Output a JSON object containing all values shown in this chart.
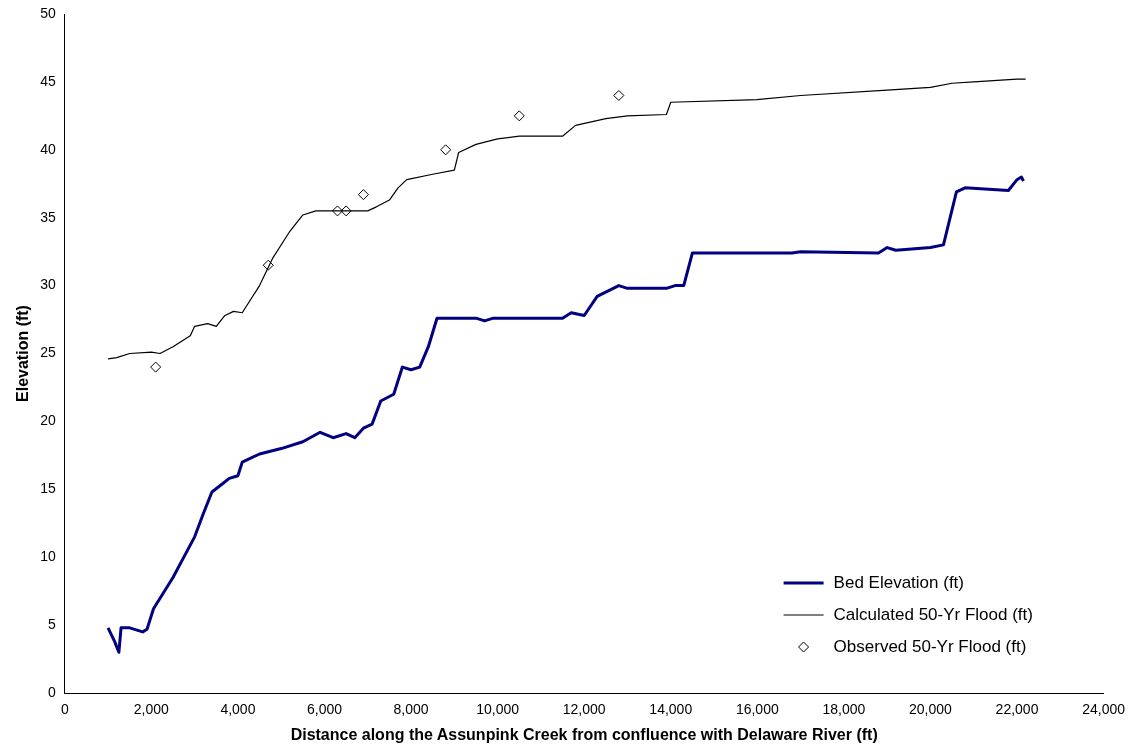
{
  "chart_data": {
    "type": "line",
    "xlabel": "Distance along the Assunpink Creek from confluence with Delaware River (ft)",
    "ylabel": "Elevation (ft)",
    "xlim": [
      0,
      24000
    ],
    "xticks": [
      0,
      {
        "value": 2000,
        "label": "2,000"
      },
      {
        "value": 4000,
        "label": "4,000"
      },
      {
        "value": 6000,
        "label": "6,000"
      },
      {
        "value": 8000,
        "label": "8,000"
      },
      {
        "value": 10000,
        "label": "10,000"
      },
      {
        "value": 12000,
        "label": "12,000"
      },
      {
        "value": 14000,
        "label": "14,000"
      },
      {
        "value": 16000,
        "label": "16,000"
      },
      {
        "value": 18000,
        "label": "18,000"
      },
      {
        "value": 20000,
        "label": "20,000"
      },
      {
        "value": 22000,
        "label": "22,000"
      },
      {
        "value": 24000,
        "label": "24,000"
      }
    ],
    "ylim": [
      0,
      50
    ],
    "yticks": [
      0,
      5,
      10,
      15,
      20,
      25,
      30,
      35,
      40,
      45,
      50
    ],
    "grid": false,
    "legend": "bottom right",
    "series": [
      {
        "name": "Bed Elevation (ft)",
        "color": "#000080",
        "x": [
          1000,
          1150,
          1250,
          1300,
          1500,
          1800,
          1900,
          2050,
          2500,
          3000,
          3200,
          3400,
          3600,
          3800,
          4000,
          4100,
          4500,
          5000,
          5500,
          5900,
          6200,
          6500,
          6700,
          6900,
          7100,
          7300,
          7600,
          7800,
          8000,
          8200,
          8400,
          8600,
          9500,
          9700,
          9900,
          11500,
          11700,
          12000,
          12300,
          12800,
          13000,
          13900,
          14100,
          14300,
          14500,
          16800,
          17000,
          18800,
          19000,
          19200,
          20000,
          20300,
          20600,
          20800,
          21800,
          22000,
          22100,
          22150
        ],
        "values": [
          4.8,
          3.8,
          3.0,
          4.8,
          4.8,
          4.5,
          4.7,
          6.2,
          8.5,
          11.5,
          13.2,
          14.8,
          15.3,
          15.8,
          16,
          17,
          17.6,
          18,
          18.5,
          19.2,
          18.8,
          19.1,
          18.8,
          19.5,
          19.8,
          21.5,
          22,
          24,
          23.8,
          24,
          25.5,
          27.6,
          27.6,
          27.4,
          27.6,
          27.6,
          28,
          27.8,
          29.2,
          30,
          29.8,
          29.8,
          30,
          30,
          32.4,
          32.4,
          32.5,
          32.4,
          32.8,
          32.6,
          32.8,
          33,
          36.9,
          37.2,
          37,
          37.8,
          38,
          37.7
        ]
      },
      {
        "name": "Calculated 50-Yr Flood (ft)",
        "color": "#000000",
        "x": [
          1000,
          1200,
          1500,
          2000,
          2200,
          2500,
          2900,
          3000,
          3300,
          3500,
          3700,
          3900,
          4100,
          4500,
          4800,
          5200,
          5500,
          5800,
          7000,
          7200,
          7500,
          7700,
          7900,
          8500,
          9000,
          9100,
          9500,
          10000,
          10500,
          11500,
          11800,
          12500,
          13000,
          13900,
          14000,
          16000,
          17000,
          19000,
          20000,
          20500,
          21000,
          22000,
          22200
        ],
        "values": [
          24.6,
          24.7,
          25,
          25.1,
          25,
          25.5,
          26.3,
          27,
          27.2,
          27,
          27.8,
          28.1,
          28,
          30,
          32,
          34,
          35.2,
          35.5,
          35.5,
          35.8,
          36.3,
          37.2,
          37.8,
          38.2,
          38.5,
          39.8,
          40.4,
          40.8,
          41,
          41,
          41.8,
          42.3,
          42.5,
          42.6,
          43.5,
          43.7,
          44,
          44.4,
          44.6,
          44.9,
          45,
          45.2,
          45.2
        ]
      },
      {
        "name": "Observed 50-Yr Flood (ft)",
        "type": "scatter",
        "marker": "diamond",
        "color": "#000000",
        "x": [
          2100,
          4700,
          6300,
          6500,
          6900,
          8800,
          10500,
          12800
        ],
        "values": [
          24,
          31.5,
          35.5,
          35.5,
          36.7,
          40,
          42.5,
          44
        ]
      }
    ]
  }
}
